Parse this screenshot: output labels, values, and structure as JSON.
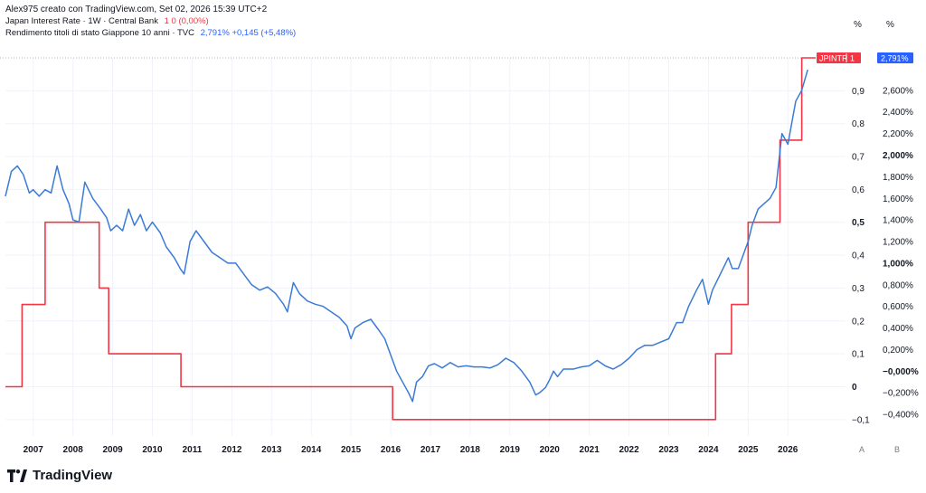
{
  "header": {
    "title": "Alex975 creato con TradingView.com, Set 02, 2026 15:39 UTC+2",
    "series1_label": "Japan Interest Rate · 1W · Central Bank",
    "series1_value": "1  0 (0,00%)",
    "series2_label": "Rendimento titoli di stato Giappone 10 anni · TVC",
    "series2_value": "2,791%  +0,145 (+5,48%)"
  },
  "axis_units": {
    "left_scale": "%",
    "right_scale": "%"
  },
  "scale_buttons": {
    "left": "A",
    "right": "B"
  },
  "badges": {
    "rate_name": "JPINTR",
    "rate_value": "1",
    "yield_value": "2,791%"
  },
  "brand": {
    "name": "TradingView",
    "logo_icon": "tradingview-logo-icon"
  },
  "colors": {
    "rate": "#f23645",
    "yield": "#3a7bd5",
    "grid": "#f0f3fa"
  },
  "chart_data": {
    "type": "line",
    "x_range": [
      2006.3,
      2026.7
    ],
    "x_ticks": [
      "2007",
      "2008",
      "2009",
      "2010",
      "2011",
      "2012",
      "2013",
      "2014",
      "2015",
      "2016",
      "2017",
      "2018",
      "2019",
      "2020",
      "2021",
      "2022",
      "2023",
      "2024",
      "2025",
      "2026"
    ],
    "rate_axis": {
      "range": [
        -0.15,
        1.0
      ],
      "ticks": [
        {
          "v": 0.9,
          "label": "0,9"
        },
        {
          "v": 0.8,
          "label": "0,8"
        },
        {
          "v": 0.7,
          "label": "0,7"
        },
        {
          "v": 0.6,
          "label": "0,6"
        },
        {
          "v": 0.5,
          "label": "0,5",
          "bold": true
        },
        {
          "v": 0.4,
          "label": "0,4"
        },
        {
          "v": 0.3,
          "label": "0,3"
        },
        {
          "v": 0.2,
          "label": "0,2"
        },
        {
          "v": 0.1,
          "label": "0,1"
        },
        {
          "v": 0.0,
          "label": "0",
          "bold": true
        },
        {
          "v": -0.1,
          "label": "−0,1"
        }
      ]
    },
    "yield_axis": {
      "range": [
        -0.6,
        2.9
      ],
      "ticks": [
        {
          "v": 2.6,
          "label": "2,600%"
        },
        {
          "v": 2.4,
          "label": "2,400%"
        },
        {
          "v": 2.2,
          "label": "2,200%"
        },
        {
          "v": 2.0,
          "label": "2,000%",
          "bold": true
        },
        {
          "v": 1.8,
          "label": "1,800%"
        },
        {
          "v": 1.6,
          "label": "1,600%"
        },
        {
          "v": 1.4,
          "label": "1,400%"
        },
        {
          "v": 1.2,
          "label": "1,200%"
        },
        {
          "v": 1.0,
          "label": "1,000%",
          "bold": true
        },
        {
          "v": 0.8,
          "label": "0,800%"
        },
        {
          "v": 0.6,
          "label": "0,600%"
        },
        {
          "v": 0.4,
          "label": "0,400%"
        },
        {
          "v": 0.2,
          "label": "0,200%"
        },
        {
          "v": 0.0,
          "label": "−0,000%",
          "bold": true
        },
        {
          "v": -0.2,
          "label": "−0,200%"
        },
        {
          "v": -0.4,
          "label": "−0,400%"
        }
      ]
    },
    "series": [
      {
        "name": "Japan Interest Rate",
        "step": true,
        "points": [
          [
            2006.3,
            0.0
          ],
          [
            2006.72,
            0.0
          ],
          [
            2006.72,
            0.25
          ],
          [
            2007.3,
            0.25
          ],
          [
            2007.3,
            0.5
          ],
          [
            2008.66,
            0.5
          ],
          [
            2008.66,
            0.3
          ],
          [
            2008.9,
            0.3
          ],
          [
            2008.9,
            0.1
          ],
          [
            2010.72,
            0.1
          ],
          [
            2010.72,
            0.0
          ],
          [
            2016.05,
            0.0
          ],
          [
            2016.05,
            -0.1
          ],
          [
            2024.18,
            -0.1
          ],
          [
            2024.18,
            0.1
          ],
          [
            2024.58,
            0.1
          ],
          [
            2024.58,
            0.25
          ],
          [
            2025.0,
            0.25
          ],
          [
            2025.0,
            0.5
          ],
          [
            2025.8,
            0.5
          ],
          [
            2025.8,
            0.75
          ],
          [
            2026.35,
            0.75
          ],
          [
            2026.35,
            1.0
          ],
          [
            2026.7,
            1.0
          ]
        ]
      },
      {
        "name": "Rendimento titoli di stato Giappone 10 anni",
        "points": [
          [
            2006.3,
            1.62
          ],
          [
            2006.45,
            1.85
          ],
          [
            2006.6,
            1.9
          ],
          [
            2006.75,
            1.82
          ],
          [
            2006.9,
            1.65
          ],
          [
            2007.0,
            1.68
          ],
          [
            2007.15,
            1.62
          ],
          [
            2007.3,
            1.68
          ],
          [
            2007.45,
            1.65
          ],
          [
            2007.6,
            1.9
          ],
          [
            2007.75,
            1.68
          ],
          [
            2007.9,
            1.55
          ],
          [
            2008.0,
            1.4
          ],
          [
            2008.15,
            1.38
          ],
          [
            2008.3,
            1.75
          ],
          [
            2008.5,
            1.6
          ],
          [
            2008.7,
            1.5
          ],
          [
            2008.85,
            1.42
          ],
          [
            2008.95,
            1.3
          ],
          [
            2009.1,
            1.35
          ],
          [
            2009.25,
            1.3
          ],
          [
            2009.4,
            1.5
          ],
          [
            2009.55,
            1.35
          ],
          [
            2009.7,
            1.45
          ],
          [
            2009.85,
            1.3
          ],
          [
            2010.0,
            1.38
          ],
          [
            2010.2,
            1.28
          ],
          [
            2010.35,
            1.15
          ],
          [
            2010.55,
            1.05
          ],
          [
            2010.7,
            0.95
          ],
          [
            2010.8,
            0.9
          ],
          [
            2010.95,
            1.2
          ],
          [
            2011.1,
            1.3
          ],
          [
            2011.3,
            1.2
          ],
          [
            2011.5,
            1.1
          ],
          [
            2011.7,
            1.05
          ],
          [
            2011.9,
            1.0
          ],
          [
            2012.1,
            1.0
          ],
          [
            2012.3,
            0.9
          ],
          [
            2012.5,
            0.8
          ],
          [
            2012.7,
            0.75
          ],
          [
            2012.9,
            0.78
          ],
          [
            2013.1,
            0.72
          ],
          [
            2013.3,
            0.62
          ],
          [
            2013.4,
            0.55
          ],
          [
            2013.55,
            0.82
          ],
          [
            2013.7,
            0.72
          ],
          [
            2013.9,
            0.65
          ],
          [
            2014.1,
            0.62
          ],
          [
            2014.3,
            0.6
          ],
          [
            2014.5,
            0.55
          ],
          [
            2014.7,
            0.5
          ],
          [
            2014.9,
            0.42
          ],
          [
            2015.0,
            0.3
          ],
          [
            2015.1,
            0.4
          ],
          [
            2015.3,
            0.45
          ],
          [
            2015.5,
            0.48
          ],
          [
            2015.7,
            0.38
          ],
          [
            2015.85,
            0.3
          ],
          [
            2016.0,
            0.15
          ],
          [
            2016.15,
            0.0
          ],
          [
            2016.3,
            -0.1
          ],
          [
            2016.45,
            -0.2
          ],
          [
            2016.55,
            -0.28
          ],
          [
            2016.65,
            -0.1
          ],
          [
            2016.8,
            -0.05
          ],
          [
            2016.95,
            0.05
          ],
          [
            2017.1,
            0.07
          ],
          [
            2017.3,
            0.03
          ],
          [
            2017.5,
            0.08
          ],
          [
            2017.7,
            0.04
          ],
          [
            2017.9,
            0.05
          ],
          [
            2018.1,
            0.04
          ],
          [
            2018.3,
            0.04
          ],
          [
            2018.5,
            0.03
          ],
          [
            2018.7,
            0.06
          ],
          [
            2018.9,
            0.12
          ],
          [
            2019.1,
            0.08
          ],
          [
            2019.3,
            0.0
          ],
          [
            2019.5,
            -0.1
          ],
          [
            2019.65,
            -0.22
          ],
          [
            2019.75,
            -0.2
          ],
          [
            2019.9,
            -0.15
          ],
          [
            2020.0,
            -0.08
          ],
          [
            2020.1,
            0.0
          ],
          [
            2020.2,
            -0.05
          ],
          [
            2020.35,
            0.02
          ],
          [
            2020.6,
            0.02
          ],
          [
            2020.8,
            0.04
          ],
          [
            2021.0,
            0.05
          ],
          [
            2021.2,
            0.1
          ],
          [
            2021.4,
            0.05
          ],
          [
            2021.6,
            0.02
          ],
          [
            2021.8,
            0.06
          ],
          [
            2022.0,
            0.12
          ],
          [
            2022.2,
            0.2
          ],
          [
            2022.4,
            0.24
          ],
          [
            2022.6,
            0.24
          ],
          [
            2022.8,
            0.27
          ],
          [
            2023.0,
            0.3
          ],
          [
            2023.2,
            0.45
          ],
          [
            2023.35,
            0.45
          ],
          [
            2023.5,
            0.6
          ],
          [
            2023.7,
            0.75
          ],
          [
            2023.85,
            0.85
          ],
          [
            2024.0,
            0.62
          ],
          [
            2024.1,
            0.75
          ],
          [
            2024.3,
            0.9
          ],
          [
            2024.5,
            1.05
          ],
          [
            2024.6,
            0.95
          ],
          [
            2024.75,
            0.95
          ],
          [
            2024.9,
            1.1
          ],
          [
            2025.0,
            1.2
          ],
          [
            2025.1,
            1.35
          ],
          [
            2025.25,
            1.5
          ],
          [
            2025.4,
            1.55
          ],
          [
            2025.55,
            1.6
          ],
          [
            2025.7,
            1.7
          ],
          [
            2025.85,
            2.2
          ],
          [
            2026.0,
            2.1
          ],
          [
            2026.1,
            2.3
          ],
          [
            2026.2,
            2.5
          ],
          [
            2026.35,
            2.6
          ],
          [
            2026.5,
            2.79
          ]
        ]
      }
    ]
  }
}
